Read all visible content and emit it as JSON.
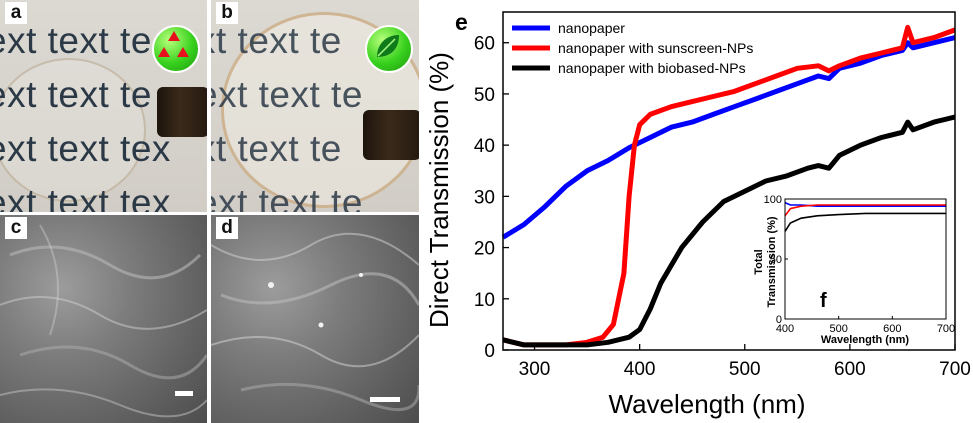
{
  "panels": {
    "a": {
      "label": "a",
      "text_lines": [
        "ext text te",
        "ext text te",
        "ext text tex",
        "ext text tex"
      ]
    },
    "b": {
      "label": "b",
      "text_lines": [
        "xt text te",
        "ext text te",
        "xt text te",
        "ext text te"
      ]
    },
    "c": {
      "label": "c"
    },
    "d": {
      "label": "d"
    }
  },
  "colors": {
    "nanopaper": "#0000ff",
    "sunscreen": "#ff0000",
    "biobased": "#000000"
  },
  "chart_data": [
    {
      "panel": "e",
      "type": "line",
      "xlabel": "Wavelength (nm)",
      "ylabel": "Direct Transmission (%)",
      "xlim": [
        270,
        700
      ],
      "ylim": [
        0,
        66
      ],
      "xticks": [
        300,
        400,
        500,
        600,
        700
      ],
      "yticks": [
        0,
        10,
        20,
        30,
        40,
        50,
        60
      ],
      "legend_position": "top-left",
      "series": [
        {
          "name": "nanopaper",
          "color": "#0000ff",
          "x": [
            270,
            290,
            310,
            330,
            350,
            370,
            390,
            410,
            430,
            450,
            470,
            490,
            510,
            530,
            550,
            570,
            580,
            590,
            610,
            630,
            650,
            655,
            660,
            680,
            700
          ],
          "y": [
            22,
            24.5,
            28,
            32,
            35,
            37,
            39.5,
            41.5,
            43.5,
            44.5,
            46,
            47.5,
            49,
            50.5,
            52,
            53.5,
            53,
            55,
            56,
            57.5,
            58.5,
            60,
            59,
            60,
            61
          ]
        },
        {
          "name": "nanopaper with sunscreen-NPs",
          "color": "#ff0000",
          "x": [
            270,
            290,
            310,
            330,
            350,
            365,
            375,
            385,
            390,
            395,
            400,
            410,
            430,
            450,
            470,
            490,
            510,
            530,
            550,
            570,
            580,
            590,
            610,
            630,
            650,
            655,
            660,
            680,
            700
          ],
          "y": [
            2,
            1,
            1,
            1,
            1.5,
            2.5,
            5,
            15,
            30,
            40,
            44,
            46,
            47.5,
            48.5,
            49.5,
            50.5,
            52,
            53.5,
            55,
            55.5,
            54.5,
            55.5,
            57,
            58,
            59,
            63,
            60,
            61,
            62.5
          ]
        },
        {
          "name": "nanopaper with biobased-NPs",
          "color": "#000000",
          "x": [
            270,
            290,
            310,
            330,
            350,
            370,
            390,
            400,
            410,
            420,
            440,
            460,
            480,
            500,
            520,
            540,
            560,
            570,
            580,
            590,
            610,
            630,
            650,
            655,
            660,
            680,
            700
          ],
          "y": [
            2,
            1,
            1,
            1,
            1,
            1.5,
            2.5,
            4,
            8,
            13,
            20,
            25,
            29,
            31,
            33,
            34,
            35.5,
            36,
            35.5,
            38,
            40,
            41.5,
            42.5,
            44.5,
            43,
            44.5,
            45.5
          ]
        }
      ]
    },
    {
      "panel": "f",
      "type": "line",
      "xlabel": "Wavelength (nm)",
      "ylabel": "Total Transmission (%)",
      "xlim": [
        400,
        700
      ],
      "ylim": [
        0,
        100
      ],
      "xticks": [
        400,
        500,
        600,
        700
      ],
      "yticks": [
        0,
        50,
        100
      ],
      "series": [
        {
          "color": "#0000ff",
          "x": [
            400,
            410,
            430,
            460,
            500,
            550,
            600,
            650,
            700
          ],
          "y": [
            97,
            95,
            95,
            94,
            94,
            94,
            94,
            94,
            94
          ]
        },
        {
          "color": "#ff0000",
          "x": [
            400,
            410,
            430,
            460,
            500,
            550,
            600,
            650,
            700
          ],
          "y": [
            86,
            92,
            94,
            95,
            95,
            95,
            95,
            95,
            95
          ]
        },
        {
          "color": "#000000",
          "x": [
            400,
            410,
            430,
            460,
            500,
            550,
            600,
            650,
            700
          ],
          "y": [
            73,
            80,
            84,
            86,
            87,
            88,
            88,
            88,
            88
          ]
        }
      ]
    }
  ]
}
